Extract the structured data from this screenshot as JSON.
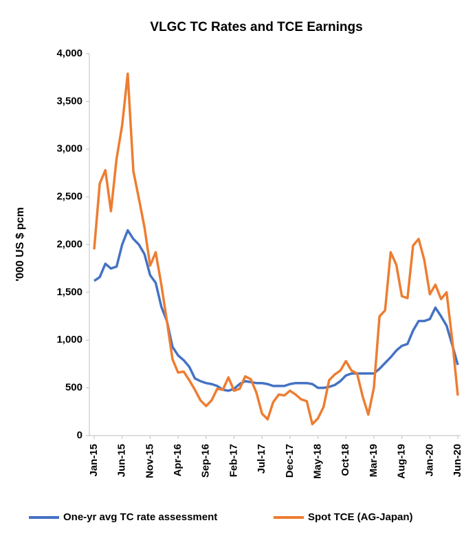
{
  "chart_data": {
    "type": "line",
    "title": "VLGC TC Rates and TCE Earnings",
    "y_label": "'000 US $ pcm",
    "categories": [
      "Jan-15",
      null,
      null,
      null,
      null,
      "Jun-15",
      null,
      null,
      null,
      null,
      "Nov-15",
      null,
      null,
      null,
      null,
      "Apr-16",
      null,
      null,
      null,
      null,
      "Sep-16",
      null,
      null,
      null,
      null,
      "Feb-17",
      null,
      null,
      null,
      null,
      "Jul-17",
      null,
      null,
      null,
      null,
      "Dec-17",
      null,
      null,
      null,
      null,
      "May-18",
      null,
      null,
      null,
      null,
      "Oct-18",
      null,
      null,
      null,
      null,
      "Mar-19",
      null,
      null,
      null,
      null,
      "Aug-19",
      null,
      null,
      null,
      null,
      "Jan-20",
      null,
      null,
      null,
      null,
      "Jun-20"
    ],
    "series": [
      {
        "name": "One-yr avg TC rate assessment",
        "color": "#4472c4",
        "values": [
          1620,
          1660,
          1800,
          1750,
          1770,
          2000,
          2150,
          2060,
          2000,
          1900,
          1680,
          1600,
          1350,
          1200,
          930,
          840,
          790,
          720,
          600,
          570,
          550,
          540,
          520,
          480,
          470,
          490,
          540,
          570,
          560,
          550,
          550,
          540,
          520,
          520,
          520,
          540,
          550,
          550,
          550,
          540,
          500,
          500,
          510,
          530,
          570,
          630,
          650,
          650,
          650,
          650,
          650,
          700,
          760,
          820,
          890,
          940,
          960,
          1100,
          1200,
          1200,
          1220,
          1340,
          1250,
          1150,
          950,
          740
        ]
      },
      {
        "name": "Spot TCE (AG-Japan)",
        "color": "#ed7d31",
        "values": [
          1950,
          2640,
          2780,
          2350,
          2900,
          3250,
          3790,
          2770,
          2480,
          2180,
          1780,
          1920,
          1580,
          1200,
          800,
          660,
          670,
          580,
          480,
          370,
          310,
          370,
          490,
          480,
          610,
          470,
          490,
          620,
          590,
          450,
          230,
          170,
          350,
          430,
          420,
          470,
          430,
          380,
          360,
          120,
          180,
          300,
          580,
          640,
          680,
          780,
          680,
          650,
          410,
          220,
          500,
          1250,
          1310,
          1920,
          1790,
          1460,
          1440,
          1990,
          2060,
          1840,
          1480,
          1580,
          1430,
          1500,
          1000,
          420
        ]
      }
    ],
    "ylim": [
      0,
      4000
    ],
    "yticks": [
      0,
      500,
      {
        "value": 1000,
        "label": "1,000"
      },
      {
        "value": 1500,
        "label": "1,500"
      },
      {
        "value": 2000,
        "label": "2,000"
      },
      {
        "value": 2500,
        "label": "2,500"
      },
      {
        "value": 3000,
        "label": "3,000"
      },
      {
        "value": 3500,
        "label": "3,500"
      },
      {
        "value": 4000,
        "label": "4,000"
      }
    ],
    "grid": false,
    "legend": "bottom"
  }
}
